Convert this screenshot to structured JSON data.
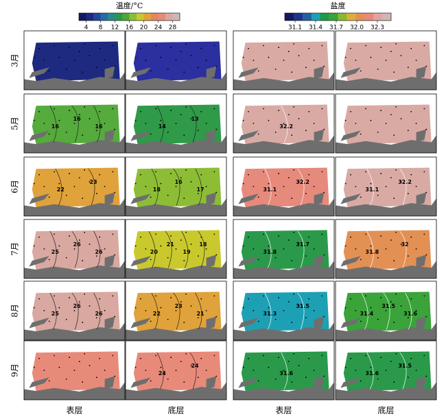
{
  "colorbars": [
    {
      "title": "温度/°C",
      "range": [
        2,
        30
      ],
      "ticks": [
        4,
        8,
        12,
        16,
        20,
        24,
        28
      ],
      "colors": [
        "#141a5e",
        "#1d2a80",
        "#24479b",
        "#2a6aa8",
        "#2a8a8a",
        "#2a9a4a",
        "#4ca63a",
        "#8dbd35",
        "#c9c92e",
        "#e0a23a",
        "#e6855e",
        "#e88a7a",
        "#d9a8a0",
        "#cfb7b3"
      ]
    },
    {
      "title": "盐度",
      "range": [
        30.95,
        32.5
      ],
      "ticks": [
        31.1,
        31.4,
        31.7,
        {
          "value": 32.0,
          "label": "32.0"
        },
        32.3
      ],
      "colors": [
        "#141a5e",
        "#20338a",
        "#2460a0",
        "#1ea0b4",
        "#1e9a48",
        "#3aa33a",
        "#8ab830",
        "#dcb038",
        "#e39055",
        "#e88a7a",
        "#e2a4a0",
        "#cfb7b3"
      ]
    }
  ],
  "rows": [
    "3月",
    "5月",
    "6月",
    "7月",
    "8月",
    "9月"
  ],
  "columns": [
    "表层",
    "底层",
    "表层",
    "底层"
  ],
  "panels": [
    [
      {
        "color": "#1d2a80",
        "labels": []
      },
      {
        "color": "#2b2fa0",
        "labels": []
      },
      {
        "color": "#d9aaa4",
        "labels": []
      },
      {
        "color": "#d9aaa4",
        "labels": []
      }
    ],
    [
      {
        "color": "#55ab3c",
        "labels": [
          16,
          16,
          16
        ]
      },
      {
        "color": "#2f9a48",
        "labels": [
          14,
          13
        ]
      },
      {
        "color": "#d9aaa4",
        "labels": [
          32.2
        ]
      },
      {
        "color": "#d9aaa4",
        "labels": []
      }
    ],
    [
      {
        "color": "#e0a23a",
        "labels": [
          22,
          23
        ]
      },
      {
        "color": "#8dbd35",
        "labels": [
          18,
          16,
          17
        ]
      },
      {
        "color": "#e68a7c",
        "labels": [
          31.1,
          32.2
        ]
      },
      {
        "color": "#d9aaa4",
        "labels": [
          31.1,
          32.2
        ]
      }
    ],
    [
      {
        "color": "#d9a8a0",
        "labels": [
          25,
          26,
          26
        ]
      },
      {
        "color": "#c9c92e",
        "labels": [
          20,
          21,
          19,
          18
        ]
      },
      {
        "color": "#2a9a4a",
        "labels": [
          31.8,
          31.7
        ]
      },
      {
        "color": "#e39055",
        "labels": [
          31.8,
          32
        ]
      }
    ],
    [
      {
        "color": "#d9a8a0",
        "labels": [
          25,
          26,
          26
        ]
      },
      {
        "color": "#e0a23a",
        "labels": [
          22,
          23,
          21
        ]
      },
      {
        "color": "#1ea0b4",
        "labels": [
          31.3,
          31.5
        ]
      },
      {
        "color": "#3aa33a",
        "labels": [
          31.4,
          31.5,
          31.6
        ]
      }
    ],
    [
      {
        "color": "#e88a7a",
        "labels": []
      },
      {
        "color": "#e88a7a",
        "labels": [
          24,
          24
        ]
      },
      {
        "color": "#2a9a4a",
        "labels": [
          31.6
        ]
      },
      {
        "color": "#2a9a4a",
        "labels": [
          31.6,
          31.5
        ]
      }
    ]
  ]
}
